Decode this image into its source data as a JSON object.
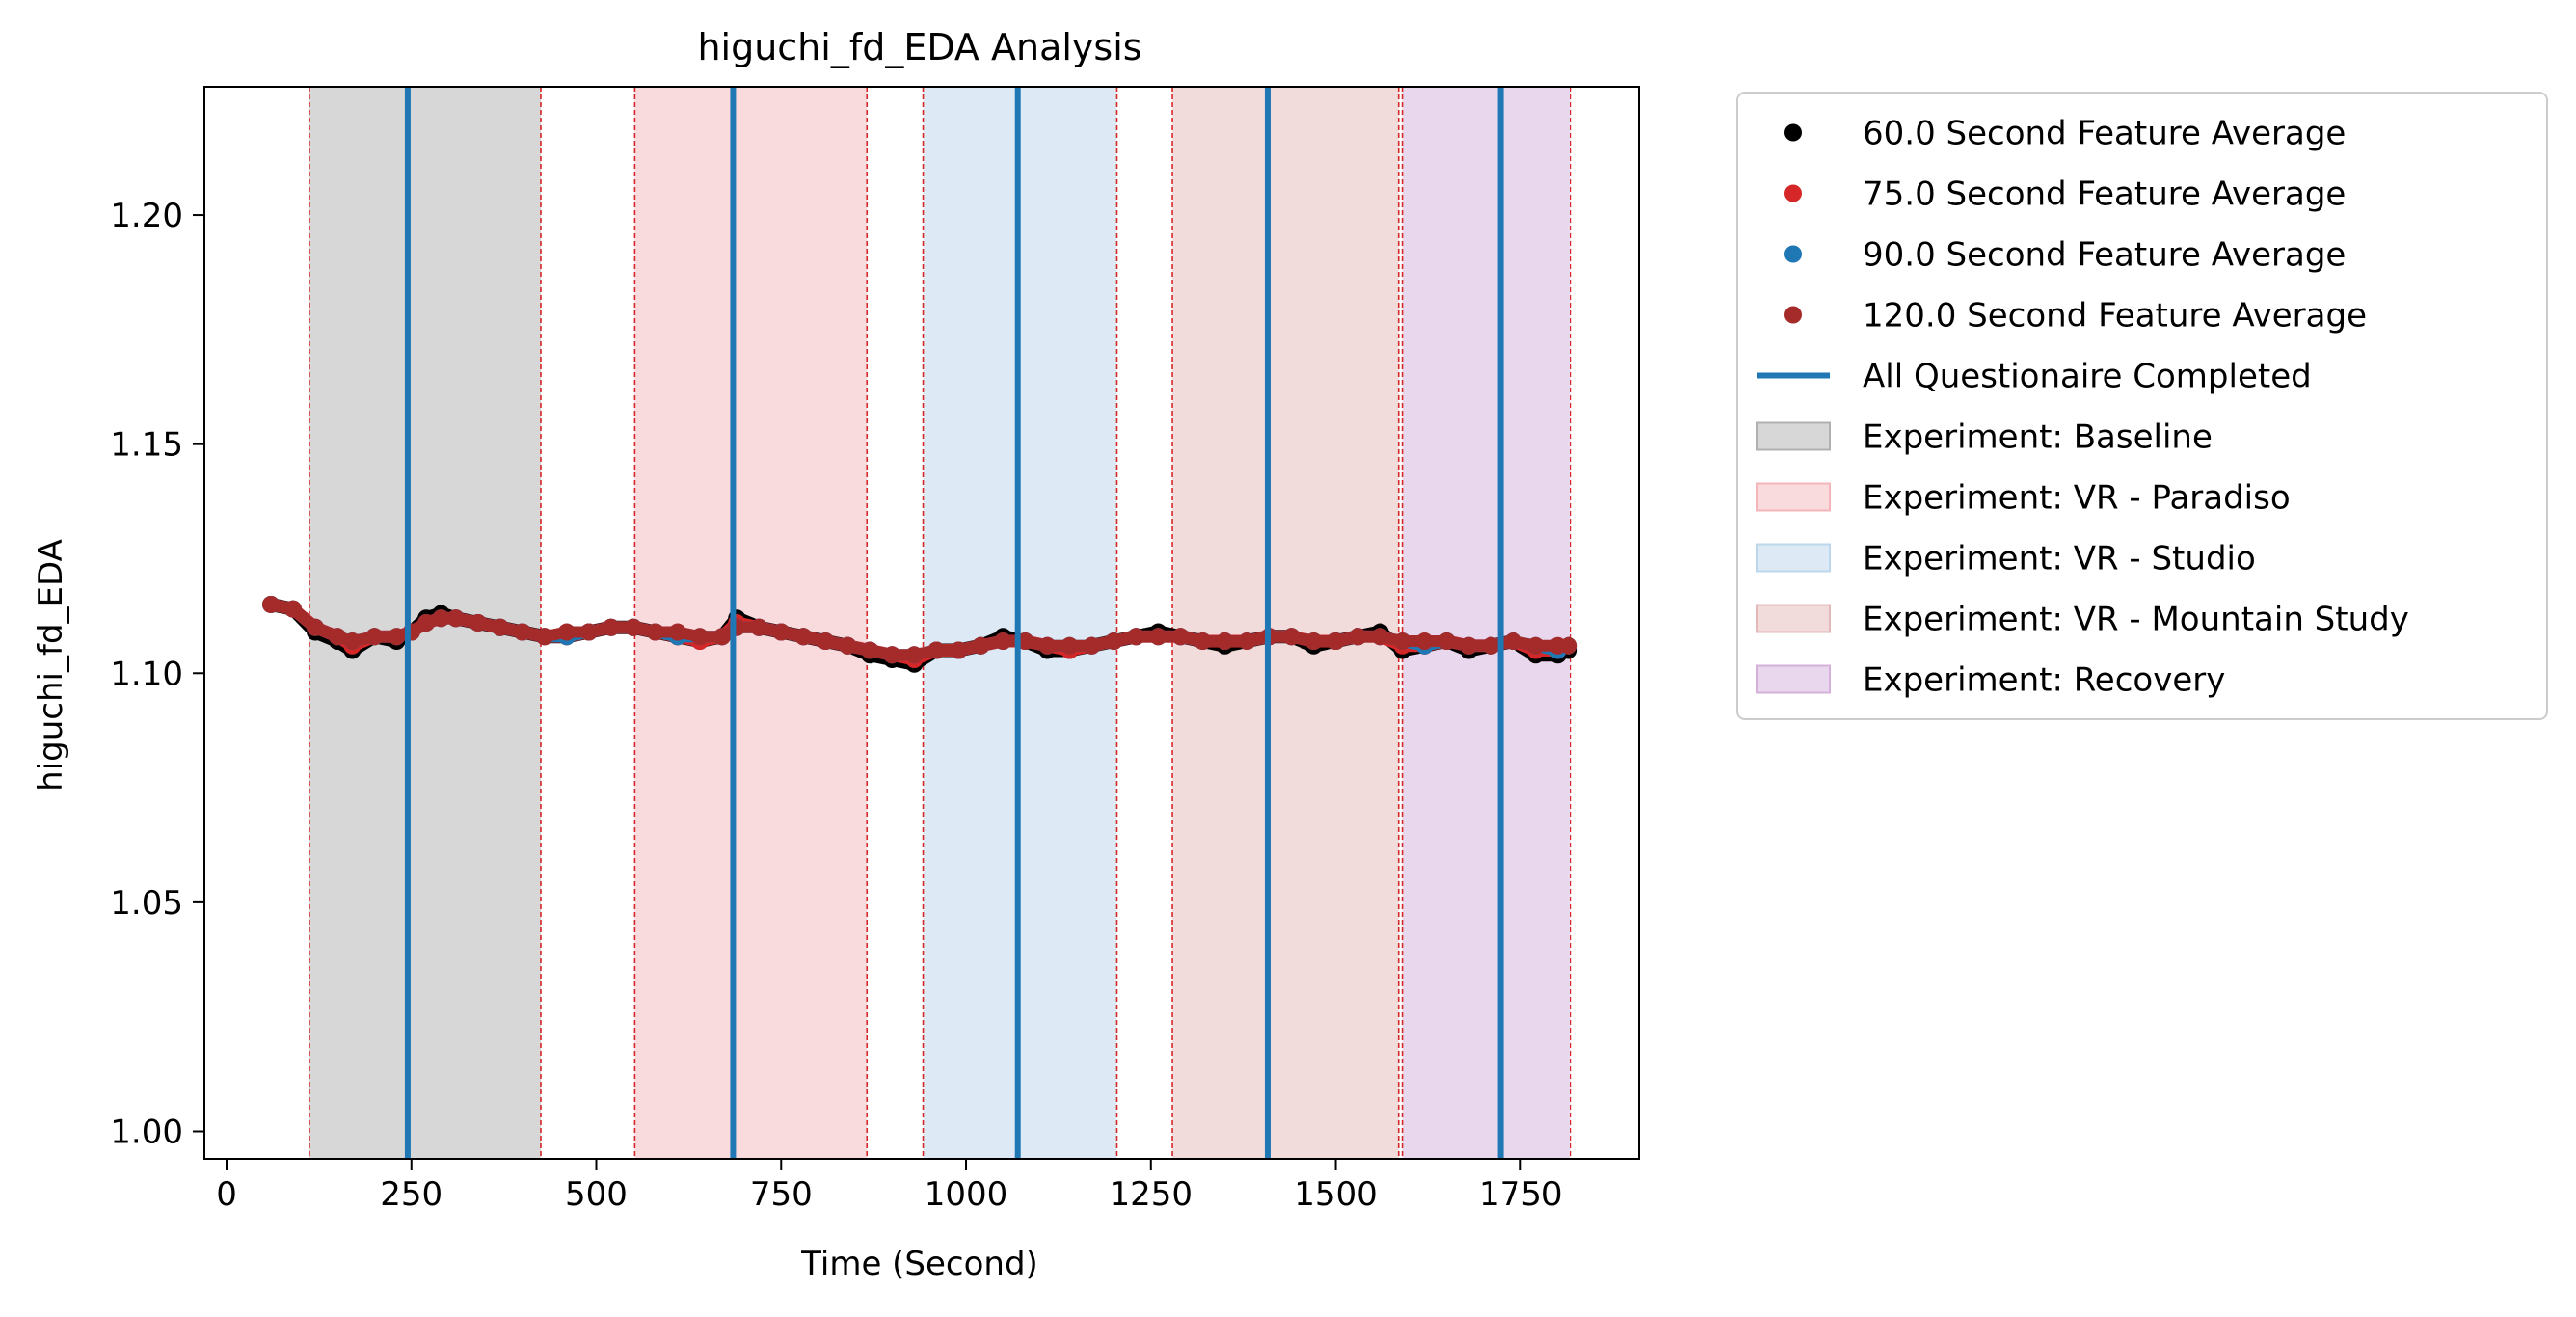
{
  "chart_data": {
    "type": "line",
    "title": "higuchi_fd_EDA Analysis",
    "xlabel": "Time (Second)",
    "ylabel": "higuchi_fd_EDA",
    "xlim": [
      -30,
      1910
    ],
    "ylim": [
      0.994,
      1.228
    ],
    "xticks": [
      0,
      250,
      500,
      750,
      1000,
      1250,
      1500,
      1750
    ],
    "xtick_labels": [
      "0",
      "250",
      "500",
      "750",
      "1000",
      "1250",
      "1500",
      "1750"
    ],
    "yticks": [
      1.0,
      1.05,
      1.1,
      1.15,
      1.2
    ],
    "ytick_labels": [
      "1.00",
      "1.05",
      "1.10",
      "1.15",
      "1.20"
    ],
    "grid": false,
    "legend_position": "outside-right",
    "questionnaire_completed": {
      "name": "All Questionaire Completed",
      "color": "#1f77b4",
      "x": [
        245,
        685,
        1070,
        1408,
        1723
      ]
    },
    "experiments": [
      {
        "name": "Experiment: Baseline",
        "start": 112,
        "end": 425,
        "color": "#b0b0b0",
        "opacity": 0.5
      },
      {
        "name": "Experiment: VR - Paradiso",
        "start": 552,
        "end": 866,
        "color": "#f4b6bb",
        "opacity": 0.5
      },
      {
        "name": "Experiment: VR - Studio",
        "start": 942,
        "end": 1204,
        "color": "#bcd6eb",
        "opacity": 0.5
      },
      {
        "name": "Experiment: VR - Mountain Study",
        "start": 1279,
        "end": 1585,
        "color": "#e3b8b8",
        "opacity": 0.5
      },
      {
        "name": "Experiment: Recovery",
        "start": 1590,
        "end": 1818,
        "color": "#d4b0db",
        "opacity": 0.5
      }
    ],
    "series": [
      {
        "name": "60.0 Second Feature Average",
        "color": "#000000",
        "x": [
          60,
          90,
          120,
          150,
          170,
          200,
          230,
          250,
          270,
          290,
          310,
          340,
          370,
          400,
          430,
          460,
          490,
          520,
          550,
          580,
          610,
          640,
          670,
          690,
          720,
          750,
          780,
          810,
          840,
          870,
          900,
          930,
          960,
          990,
          1020,
          1050,
          1080,
          1110,
          1140,
          1170,
          1200,
          1230,
          1260,
          1290,
          1320,
          1350,
          1380,
          1410,
          1440,
          1470,
          1500,
          1530,
          1560,
          1590,
          1620,
          1650,
          1680,
          1710,
          1740,
          1770,
          1800,
          1815
        ],
        "y": [
          1.115,
          1.114,
          1.109,
          1.107,
          1.105,
          1.108,
          1.107,
          1.109,
          1.112,
          1.113,
          1.112,
          1.111,
          1.11,
          1.109,
          1.108,
          1.108,
          1.109,
          1.11,
          1.11,
          1.109,
          1.108,
          1.107,
          1.108,
          1.112,
          1.11,
          1.109,
          1.108,
          1.107,
          1.106,
          1.104,
          1.103,
          1.102,
          1.105,
          1.105,
          1.106,
          1.108,
          1.107,
          1.105,
          1.105,
          1.106,
          1.107,
          1.108,
          1.109,
          1.108,
          1.107,
          1.106,
          1.107,
          1.108,
          1.108,
          1.106,
          1.107,
          1.108,
          1.109,
          1.105,
          1.106,
          1.107,
          1.105,
          1.106,
          1.107,
          1.104,
          1.104,
          1.105
        ]
      },
      {
        "name": "75.0 Second Feature Average",
        "color": "#d62728",
        "x": [
          60,
          90,
          120,
          150,
          170,
          200,
          230,
          250,
          270,
          290,
          310,
          340,
          370,
          400,
          430,
          460,
          490,
          520,
          550,
          580,
          610,
          640,
          670,
          690,
          720,
          750,
          780,
          810,
          840,
          870,
          900,
          930,
          960,
          990,
          1020,
          1050,
          1080,
          1110,
          1140,
          1170,
          1200,
          1230,
          1260,
          1290,
          1320,
          1350,
          1380,
          1410,
          1440,
          1470,
          1500,
          1530,
          1560,
          1590,
          1620,
          1650,
          1680,
          1710,
          1740,
          1770,
          1800,
          1815
        ],
        "y": [
          1.115,
          1.114,
          1.11,
          1.108,
          1.106,
          1.108,
          1.108,
          1.109,
          1.111,
          1.112,
          1.112,
          1.111,
          1.11,
          1.109,
          1.108,
          1.108,
          1.109,
          1.11,
          1.11,
          1.109,
          1.108,
          1.107,
          1.108,
          1.111,
          1.11,
          1.109,
          1.108,
          1.107,
          1.106,
          1.105,
          1.104,
          1.103,
          1.105,
          1.105,
          1.106,
          1.107,
          1.107,
          1.106,
          1.105,
          1.106,
          1.107,
          1.108,
          1.108,
          1.108,
          1.107,
          1.107,
          1.107,
          1.108,
          1.108,
          1.107,
          1.107,
          1.108,
          1.108,
          1.106,
          1.106,
          1.107,
          1.106,
          1.106,
          1.107,
          1.105,
          1.105,
          1.106
        ]
      },
      {
        "name": "90.0 Second Feature Average",
        "color": "#1f77b4",
        "x": [
          60,
          90,
          120,
          150,
          170,
          200,
          230,
          250,
          270,
          290,
          310,
          340,
          370,
          400,
          430,
          460,
          490,
          520,
          550,
          580,
          610,
          640,
          670,
          690,
          720,
          750,
          780,
          810,
          840,
          870,
          900,
          930,
          960,
          990,
          1020,
          1050,
          1080,
          1110,
          1140,
          1170,
          1200,
          1230,
          1260,
          1290,
          1320,
          1350,
          1380,
          1410,
          1440,
          1470,
          1500,
          1530,
          1560,
          1590,
          1620,
          1650,
          1680,
          1710,
          1740,
          1770,
          1800,
          1815
        ],
        "y": [
          1.115,
          1.114,
          1.11,
          1.108,
          1.107,
          1.108,
          1.108,
          1.109,
          1.111,
          1.112,
          1.112,
          1.111,
          1.11,
          1.109,
          1.108,
          1.108,
          1.109,
          1.11,
          1.11,
          1.109,
          1.108,
          1.108,
          1.108,
          1.11,
          1.11,
          1.109,
          1.108,
          1.107,
          1.106,
          1.105,
          1.104,
          1.104,
          1.105,
          1.105,
          1.106,
          1.107,
          1.107,
          1.106,
          1.106,
          1.106,
          1.107,
          1.108,
          1.108,
          1.108,
          1.107,
          1.107,
          1.107,
          1.108,
          1.108,
          1.107,
          1.107,
          1.108,
          1.108,
          1.107,
          1.106,
          1.107,
          1.106,
          1.106,
          1.107,
          1.106,
          1.105,
          1.106
        ]
      },
      {
        "name": "120.0 Second Feature Average",
        "color": "#a52a2a",
        "x": [
          60,
          90,
          120,
          150,
          170,
          200,
          230,
          250,
          270,
          290,
          310,
          340,
          370,
          400,
          430,
          460,
          490,
          520,
          550,
          580,
          610,
          640,
          670,
          690,
          720,
          750,
          780,
          810,
          840,
          870,
          900,
          930,
          960,
          990,
          1020,
          1050,
          1080,
          1110,
          1140,
          1170,
          1200,
          1230,
          1260,
          1290,
          1320,
          1350,
          1380,
          1410,
          1440,
          1470,
          1500,
          1530,
          1560,
          1590,
          1620,
          1650,
          1680,
          1710,
          1740,
          1770,
          1800,
          1815
        ],
        "y": [
          1.115,
          1.114,
          1.11,
          1.108,
          1.107,
          1.108,
          1.108,
          1.109,
          1.111,
          1.112,
          1.112,
          1.111,
          1.11,
          1.109,
          1.108,
          1.109,
          1.109,
          1.11,
          1.11,
          1.109,
          1.109,
          1.108,
          1.108,
          1.11,
          1.11,
          1.109,
          1.108,
          1.107,
          1.106,
          1.105,
          1.104,
          1.104,
          1.105,
          1.105,
          1.106,
          1.107,
          1.107,
          1.106,
          1.106,
          1.106,
          1.107,
          1.108,
          1.108,
          1.108,
          1.107,
          1.107,
          1.107,
          1.108,
          1.108,
          1.107,
          1.107,
          1.108,
          1.108,
          1.107,
          1.107,
          1.107,
          1.106,
          1.106,
          1.107,
          1.106,
          1.106,
          1.106
        ]
      }
    ]
  }
}
